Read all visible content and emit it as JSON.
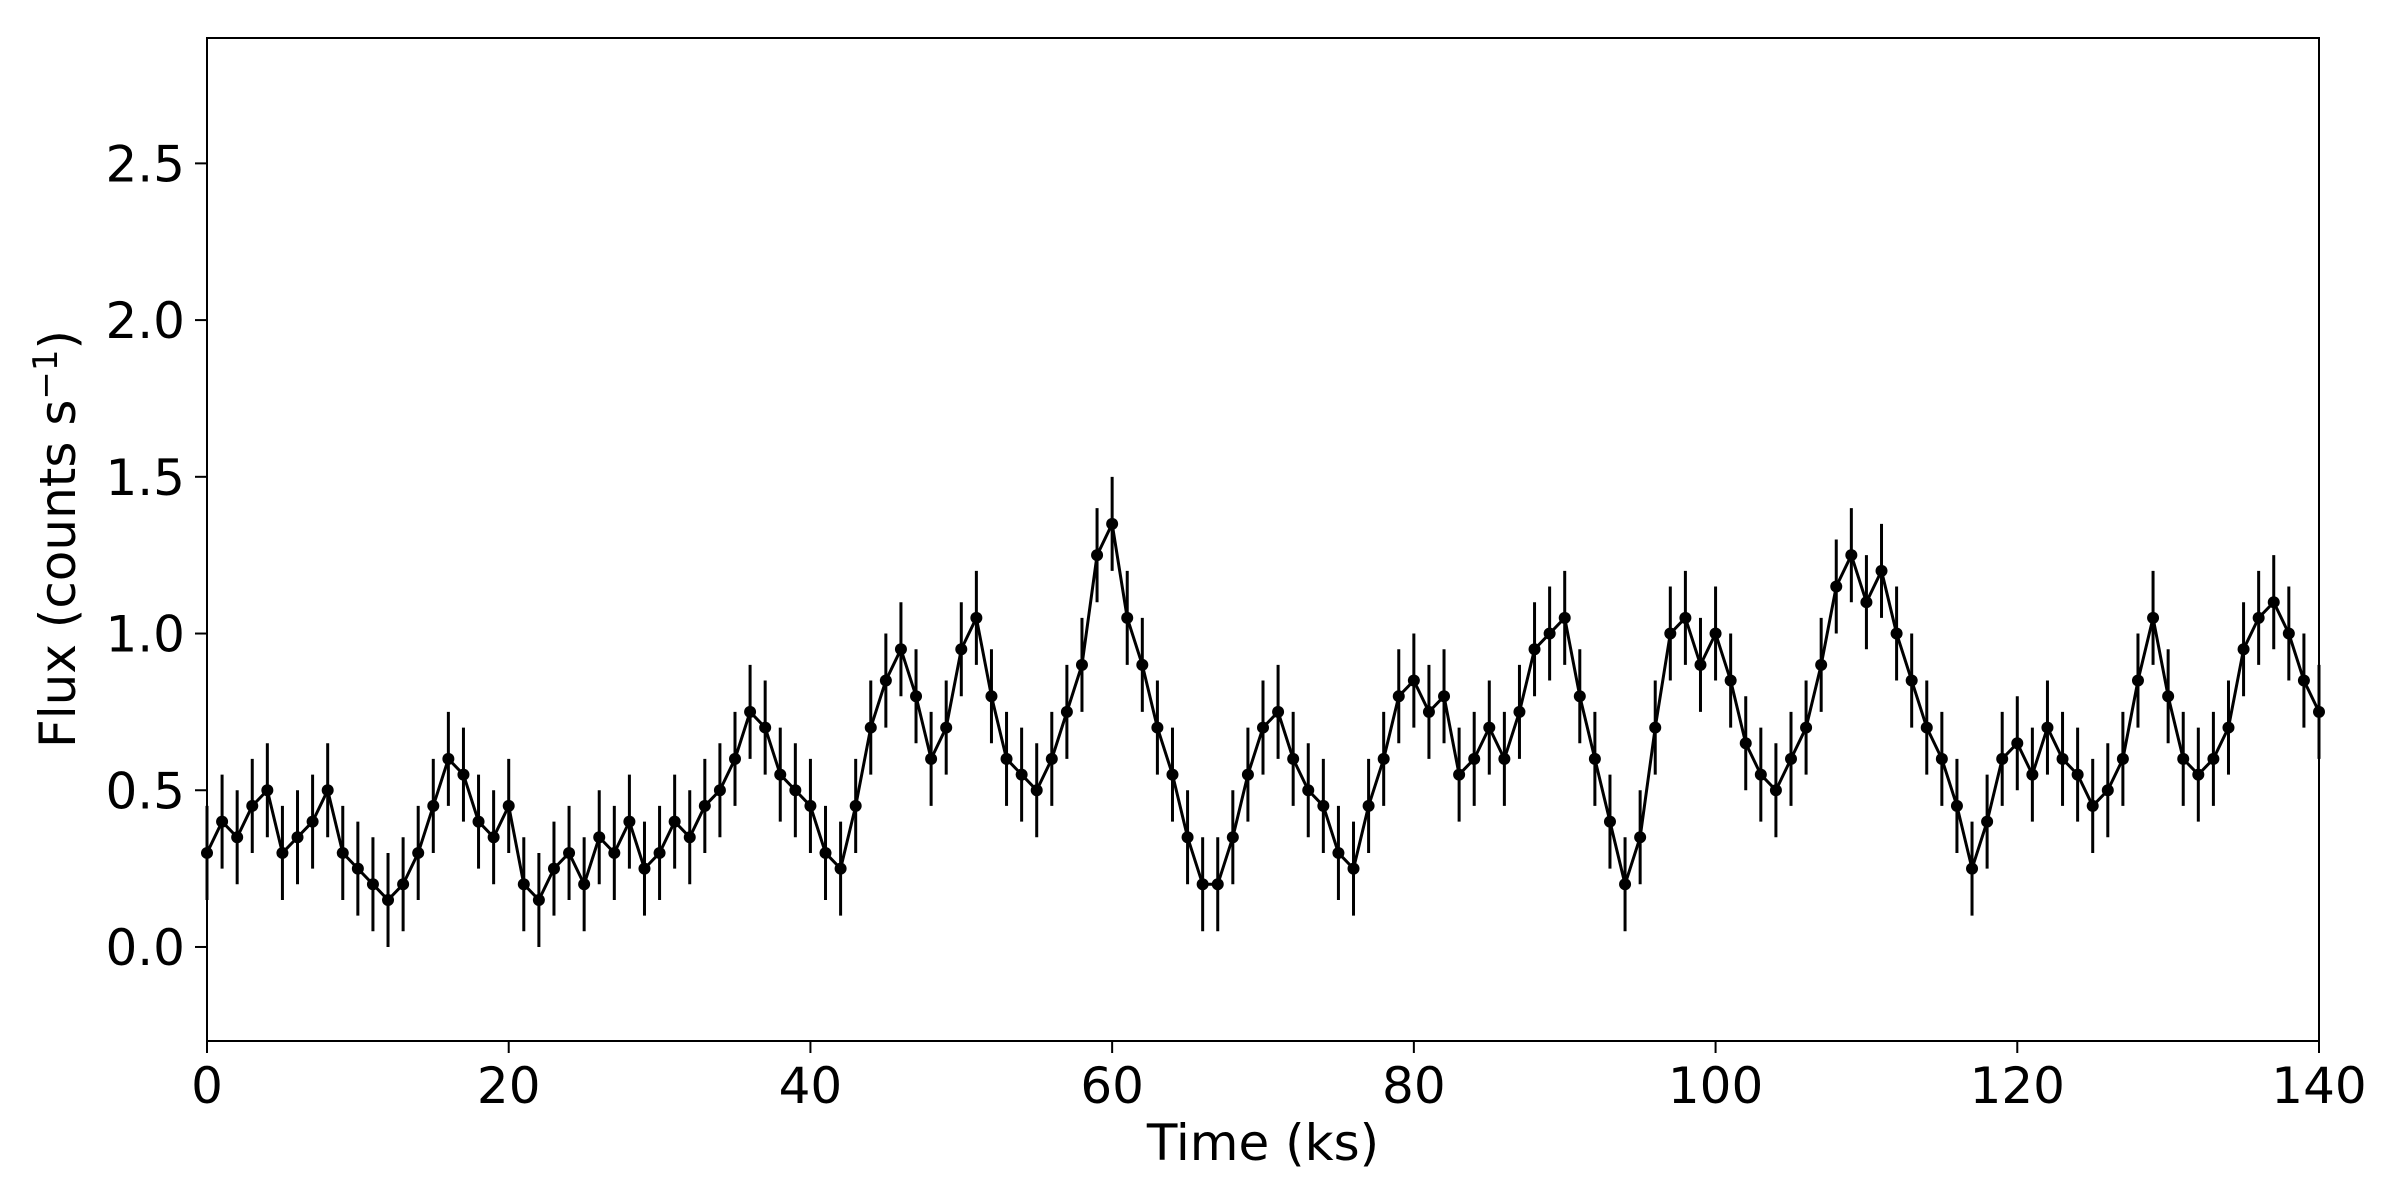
{
  "chart_data": {
    "type": "errorbar",
    "xlabel": "Time (ks)",
    "ylabel": {
      "text": "Flux (counts s",
      "superscript": "−1",
      "suffix": ")"
    },
    "xlim": [
      0,
      140
    ],
    "xticks": [
      0,
      20,
      40,
      60,
      80,
      100,
      120,
      140
    ],
    "ylim": [
      -0.3,
      2.9
    ],
    "yticks": [
      {
        "value": 0,
        "label": "0.0"
      },
      0.5,
      {
        "value": 1,
        "label": "1.0"
      },
      1.5,
      {
        "value": 2,
        "label": "2.0"
      },
      2.5
    ],
    "x": [
      0,
      1,
      2,
      3,
      4,
      5,
      6,
      7,
      8,
      9,
      10,
      11,
      12,
      13,
      14,
      15,
      16,
      17,
      18,
      19,
      20,
      21,
      22,
      23,
      24,
      25,
      26,
      27,
      28,
      29,
      30,
      31,
      32,
      33,
      34,
      35,
      36,
      37,
      38,
      39,
      40,
      41,
      42,
      43,
      44,
      45,
      46,
      47,
      48,
      49,
      50,
      51,
      52,
      53,
      54,
      55,
      56,
      57,
      58,
      59,
      60,
      61,
      62,
      63,
      64,
      65,
      66,
      67,
      68,
      69,
      70,
      71,
      72,
      73,
      74,
      75,
      76,
      77,
      78,
      79,
      80,
      81,
      82,
      83,
      84,
      85,
      86,
      87,
      88,
      89,
      90,
      91,
      92,
      93,
      94,
      95,
      96,
      97,
      98,
      99,
      100,
      101,
      102,
      103,
      104,
      105,
      106,
      107,
      108,
      109,
      110,
      111,
      112,
      113,
      114,
      115,
      116,
      117,
      118,
      119,
      120,
      121,
      122,
      123,
      124,
      125,
      126,
      127,
      128,
      129,
      130,
      131,
      132,
      133,
      134,
      135,
      136,
      137,
      138,
      139,
      140
    ],
    "series": [
      {
        "color": "#000000",
        "yerr": 0.15,
        "values": [
          0.3,
          0.4,
          0.35,
          0.45,
          0.5,
          0.3,
          0.35,
          0.4,
          0.5,
          0.3,
          0.25,
          0.2,
          0.15,
          0.2,
          0.3,
          0.45,
          0.6,
          0.55,
          0.4,
          0.35,
          0.45,
          0.2,
          0.15,
          0.25,
          0.3,
          0.2,
          0.35,
          0.3,
          0.4,
          0.25,
          0.3,
          0.4,
          0.35,
          0.45,
          0.5,
          0.6,
          0.75,
          0.7,
          0.55,
          0.5,
          0.45,
          0.3,
          0.25,
          0.45,
          0.7,
          0.85,
          0.95,
          0.8,
          0.6,
          0.7,
          0.95,
          1.05,
          0.8,
          0.6,
          0.55,
          0.5,
          0.6,
          0.75,
          0.9,
          1.25,
          1.35,
          1.05,
          0.9,
          0.7,
          0.55,
          0.35,
          0.2,
          0.2,
          0.35,
          0.55,
          0.7,
          0.75,
          0.6,
          0.5,
          0.45,
          0.3,
          0.25,
          0.45,
          0.6,
          0.8,
          0.85,
          0.75,
          0.8,
          0.55,
          0.6,
          0.7,
          0.6,
          0.75,
          0.95,
          1.0,
          1.05,
          0.8,
          0.6,
          0.4,
          0.2,
          0.35,
          0.7,
          1.0,
          1.05,
          0.9,
          1.0,
          0.85,
          0.65,
          0.55,
          0.5,
          0.6,
          0.7,
          0.9,
          1.15,
          1.25,
          1.1,
          1.2,
          1.0,
          0.85,
          0.7,
          0.6,
          0.45,
          0.25,
          0.4,
          0.6,
          0.65,
          0.55,
          0.7,
          0.6,
          0.55,
          0.45,
          0.5,
          0.6,
          0.85,
          1.05,
          0.8,
          0.6,
          0.55,
          0.6,
          0.7,
          0.95,
          1.05,
          1.1,
          1.0,
          0.85,
          0.75
        ]
      }
    ]
  }
}
